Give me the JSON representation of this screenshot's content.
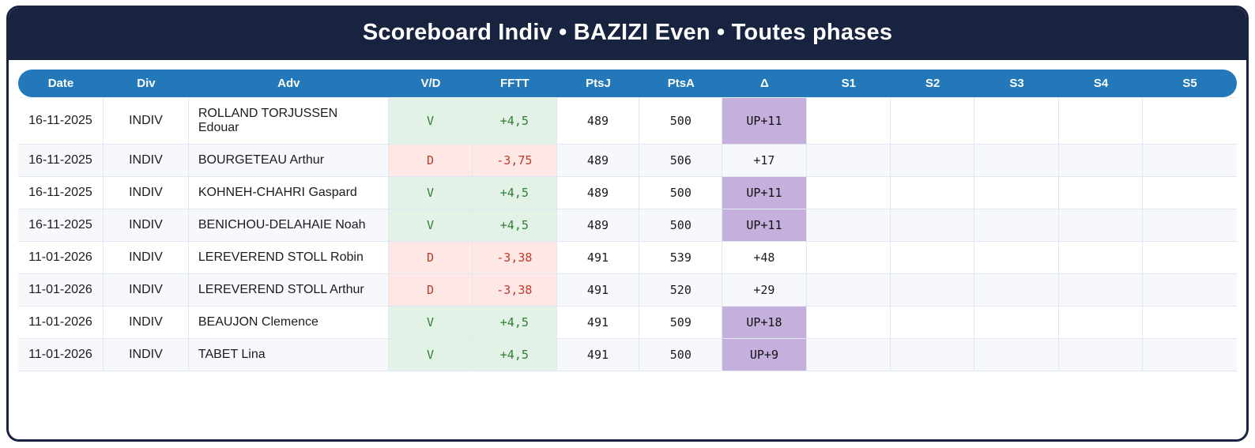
{
  "title": "Scoreboard Indiv • BAZIZI Even • Toutes phases",
  "colors": {
    "header_navy": "#17233f",
    "table_header_blue": "#2278b8",
    "win_bg": "#e3f2e7",
    "win_text": "#2e7d32",
    "loss_bg": "#fde8e6",
    "loss_text": "#c0392b",
    "promo_bg": "#c4afdd",
    "alt_row_bg": "#f6f8fc"
  },
  "table": {
    "columns": [
      "Date",
      "Div",
      "Adv",
      "V/D",
      "FFTT",
      "PtsJ",
      "PtsA",
      "Δ",
      "S1",
      "S2",
      "S3",
      "S4",
      "S5"
    ],
    "rows": [
      {
        "date": "16-11-2025",
        "div": "INDIV",
        "adv": "ROLLAND TORJUSSEN Edouar",
        "vd": "V",
        "fftt": "+4,5",
        "ptsj": "489",
        "ptsa": "500",
        "delta": "UP+11",
        "result": "win",
        "promo": true,
        "s1": "",
        "s2": "",
        "s3": "",
        "s4": "",
        "s5": ""
      },
      {
        "date": "16-11-2025",
        "div": "INDIV",
        "adv": "BOURGETEAU Arthur",
        "vd": "D",
        "fftt": "-3,75",
        "ptsj": "489",
        "ptsa": "506",
        "delta": "+17",
        "result": "loss",
        "promo": false,
        "s1": "",
        "s2": "",
        "s3": "",
        "s4": "",
        "s5": ""
      },
      {
        "date": "16-11-2025",
        "div": "INDIV",
        "adv": "KOHNEH-CHAHRI Gaspard",
        "vd": "V",
        "fftt": "+4,5",
        "ptsj": "489",
        "ptsa": "500",
        "delta": "UP+11",
        "result": "win",
        "promo": true,
        "s1": "",
        "s2": "",
        "s3": "",
        "s4": "",
        "s5": ""
      },
      {
        "date": "16-11-2025",
        "div": "INDIV",
        "adv": "BENICHOU-DELAHAIE Noah",
        "vd": "V",
        "fftt": "+4,5",
        "ptsj": "489",
        "ptsa": "500",
        "delta": "UP+11",
        "result": "win",
        "promo": true,
        "s1": "",
        "s2": "",
        "s3": "",
        "s4": "",
        "s5": ""
      },
      {
        "date": "11-01-2026",
        "div": "INDIV",
        "adv": "LEREVEREND STOLL Robin",
        "vd": "D",
        "fftt": "-3,38",
        "ptsj": "491",
        "ptsa": "539",
        "delta": "+48",
        "result": "loss",
        "promo": false,
        "s1": "",
        "s2": "",
        "s3": "",
        "s4": "",
        "s5": ""
      },
      {
        "date": "11-01-2026",
        "div": "INDIV",
        "adv": "LEREVEREND STOLL Arthur",
        "vd": "D",
        "fftt": "-3,38",
        "ptsj": "491",
        "ptsa": "520",
        "delta": "+29",
        "result": "loss",
        "promo": false,
        "s1": "",
        "s2": "",
        "s3": "",
        "s4": "",
        "s5": ""
      },
      {
        "date": "11-01-2026",
        "div": "INDIV",
        "adv": "BEAUJON Clemence",
        "vd": "V",
        "fftt": "+4,5",
        "ptsj": "491",
        "ptsa": "509",
        "delta": "UP+18",
        "result": "win",
        "promo": true,
        "s1": "",
        "s2": "",
        "s3": "",
        "s4": "",
        "s5": ""
      },
      {
        "date": "11-01-2026",
        "div": "INDIV",
        "adv": "TABET Lina",
        "vd": "V",
        "fftt": "+4,5",
        "ptsj": "491",
        "ptsa": "500",
        "delta": "UP+9",
        "result": "win",
        "promo": true,
        "s1": "",
        "s2": "",
        "s3": "",
        "s4": "",
        "s5": ""
      }
    ]
  }
}
